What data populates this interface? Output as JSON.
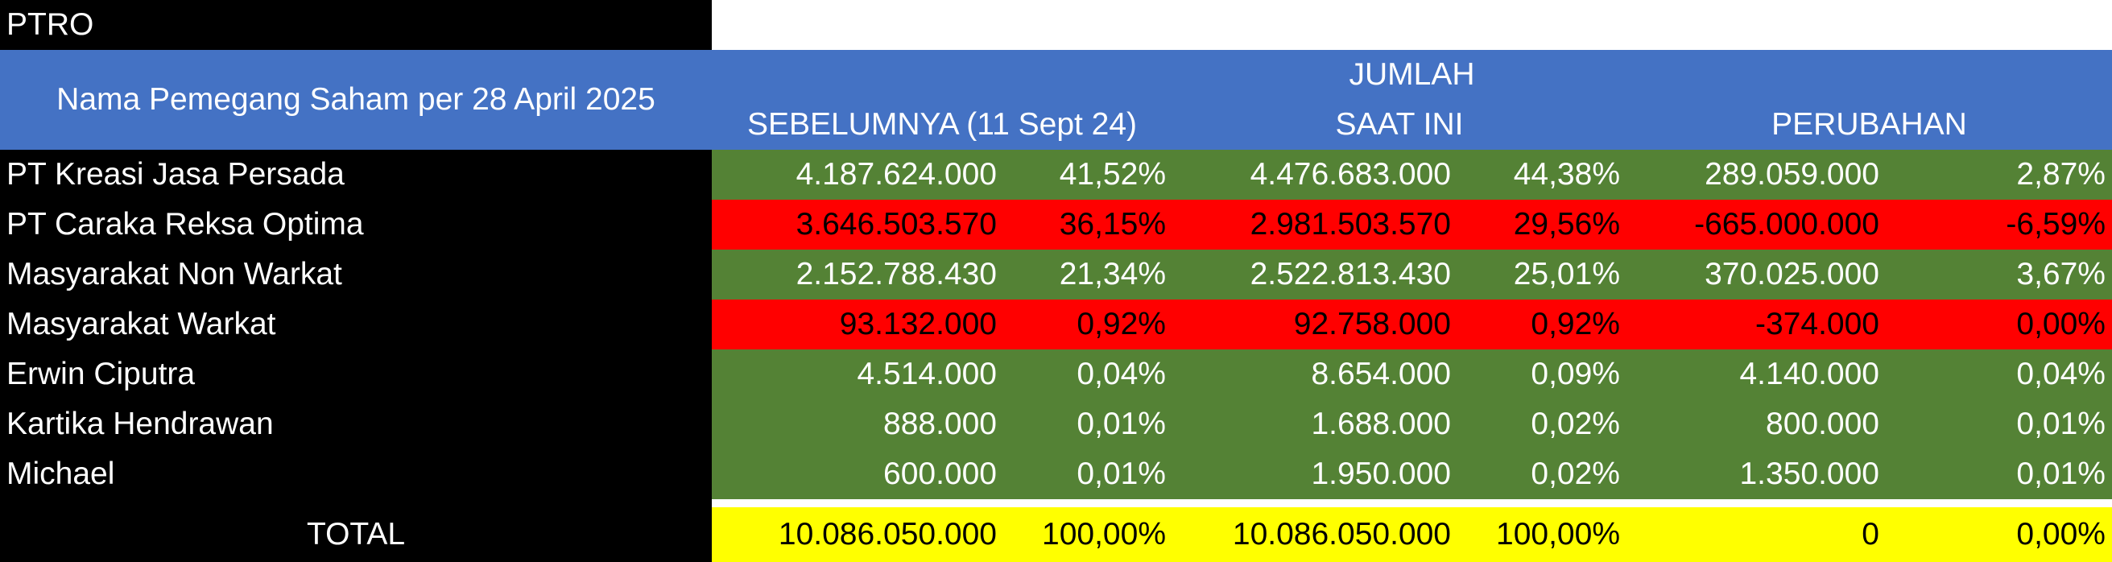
{
  "ticker": "PTRO",
  "header": {
    "title": "Nama Pemegang Saham per 28 April 2025",
    "group_label": "JUMLAH",
    "col_before": "SEBELUMNYA (11 Sept 24)",
    "col_now": "SAAT INI",
    "col_change": "PERUBAHAN"
  },
  "rows": [
    {
      "name": "PT Kreasi Jasa Persada",
      "status": "up",
      "before": "4.187.624.000",
      "before_pct": "41,52%",
      "now": "4.476.683.000",
      "now_pct": "44,38%",
      "change": "289.059.000",
      "change_pct": "2,87%"
    },
    {
      "name": "PT Caraka Reksa Optima",
      "status": "down",
      "before": "3.646.503.570",
      "before_pct": "36,15%",
      "now": "2.981.503.570",
      "now_pct": "29,56%",
      "change": "-665.000.000",
      "change_pct": "-6,59%"
    },
    {
      "name": "Masyarakat Non Warkat",
      "status": "up",
      "before": "2.152.788.430",
      "before_pct": "21,34%",
      "now": "2.522.813.430",
      "now_pct": "25,01%",
      "change": "370.025.000",
      "change_pct": "3,67%"
    },
    {
      "name": "Masyarakat Warkat",
      "status": "down",
      "before": "93.132.000",
      "before_pct": "0,92%",
      "now": "92.758.000",
      "now_pct": "0,92%",
      "change": "-374.000",
      "change_pct": "0,00%"
    },
    {
      "name": "Erwin Ciputra",
      "status": "up",
      "before": "4.514.000",
      "before_pct": "0,04%",
      "now": "8.654.000",
      "now_pct": "0,09%",
      "change": "4.140.000",
      "change_pct": "0,04%"
    },
    {
      "name": "Kartika Hendrawan",
      "status": "up",
      "before": "888.000",
      "before_pct": "0,01%",
      "now": "1.688.000",
      "now_pct": "0,02%",
      "change": "800.000",
      "change_pct": "0,01%"
    },
    {
      "name": "Michael",
      "status": "up",
      "before": "600.000",
      "before_pct": "0,01%",
      "now": "1.950.000",
      "now_pct": "0,02%",
      "change": "1.350.000",
      "change_pct": "0,01%"
    }
  ],
  "total": {
    "label": "TOTAL",
    "before": "10.086.050.000",
    "before_pct": "100,00%",
    "now": "10.086.050.000",
    "now_pct": "100,00%",
    "change": "0",
    "change_pct": "0,00%"
  },
  "colors": {
    "header_bg": "#4472c4",
    "increase_bg": "#548235",
    "decrease_bg": "#ff0000",
    "total_bg": "#ffff00",
    "name_col_bg": "#000000"
  }
}
